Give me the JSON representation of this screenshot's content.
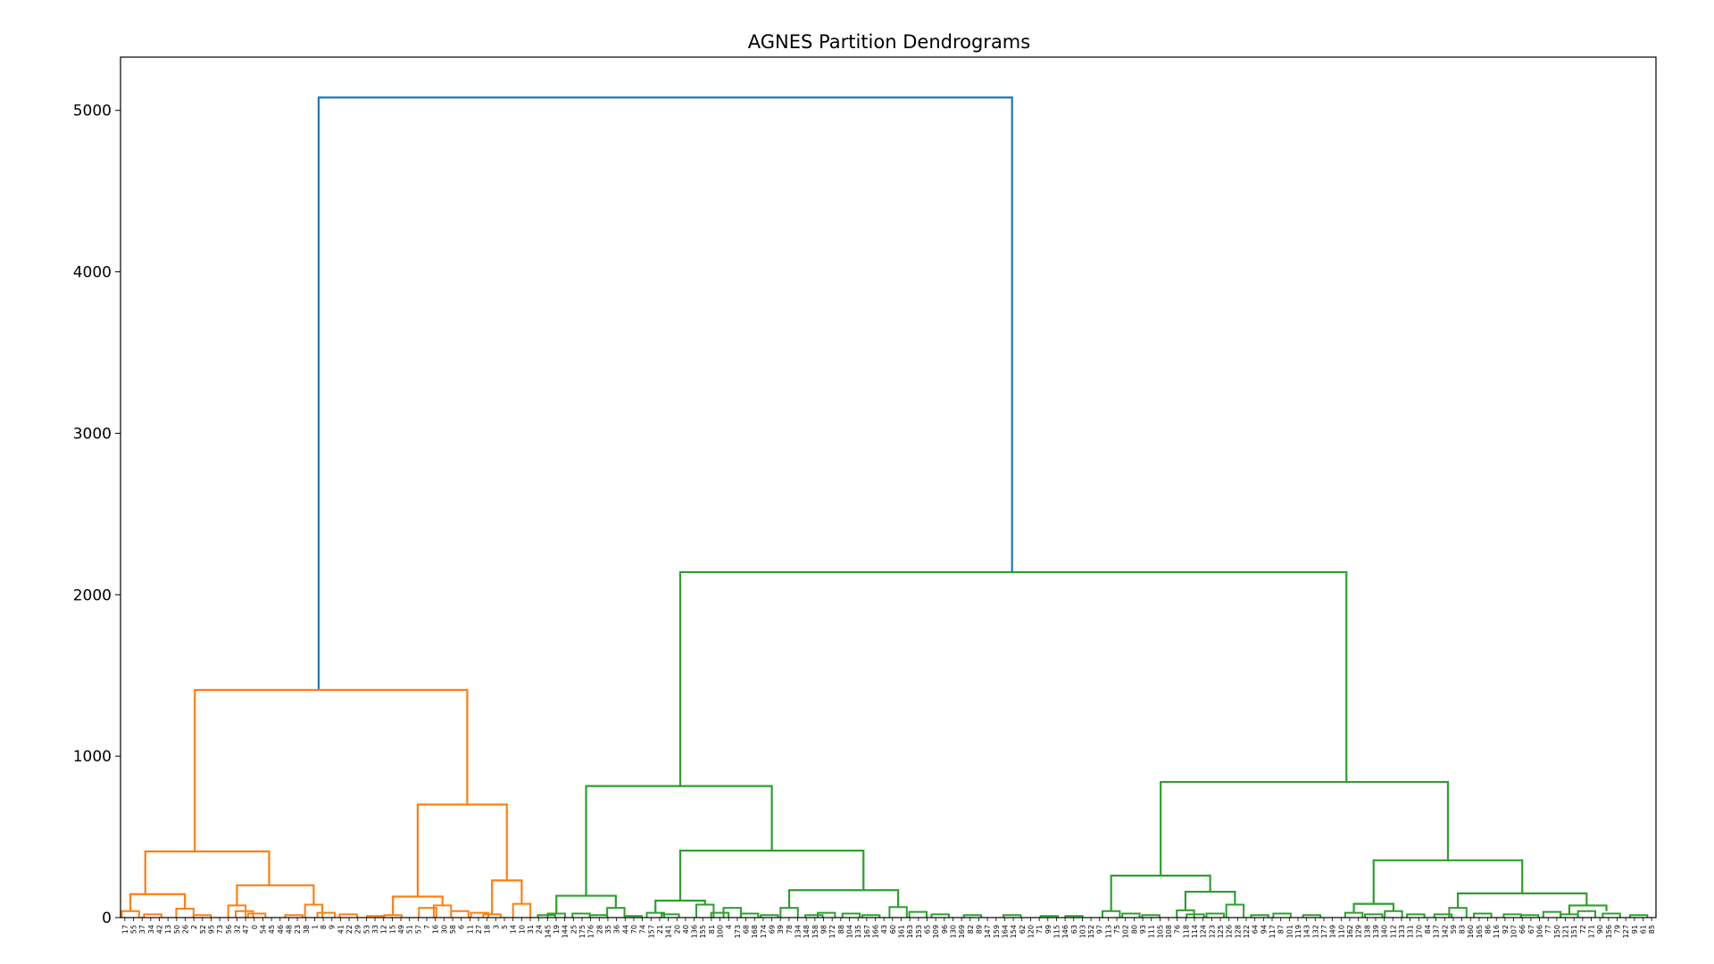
{
  "chart_data": {
    "type": "dendrogram",
    "title": "AGNES Partition Dendrograms",
    "xlabel": "",
    "ylabel": "",
    "ylim": [
      0,
      5330
    ],
    "yticks": [
      0,
      1000,
      2000,
      3000,
      4000,
      5000
    ],
    "grid": false,
    "colors": {
      "root": "#1f77b4",
      "cluster_1": "#ff7f0e",
      "cluster_2": "#2ca02c"
    },
    "leaves": [
      17,
      55,
      37,
      34,
      42,
      13,
      50,
      26,
      2,
      52,
      95,
      73,
      56,
      32,
      47,
      0,
      54,
      45,
      46,
      48,
      23,
      38,
      1,
      8,
      9,
      41,
      22,
      29,
      53,
      33,
      12,
      15,
      49,
      51,
      57,
      7,
      16,
      30,
      58,
      6,
      11,
      27,
      18,
      3,
      5,
      14,
      10,
      31,
      24,
      145,
      19,
      144,
      25,
      175,
      176,
      28,
      35,
      36,
      44,
      70,
      74,
      157,
      21,
      141,
      20,
      40,
      136,
      155,
      81,
      100,
      4,
      173,
      68,
      168,
      174,
      69,
      39,
      78,
      134,
      148,
      158,
      98,
      172,
      88,
      104,
      135,
      167,
      166,
      43,
      60,
      161,
      163,
      153,
      65,
      109,
      96,
      130,
      169,
      82,
      89,
      147,
      159,
      164,
      154,
      62,
      120,
      71,
      99,
      115,
      146,
      63,
      103,
      152,
      97,
      113,
      75,
      102,
      80,
      93,
      111,
      105,
      108,
      76,
      118,
      114,
      124,
      123,
      125,
      126,
      128,
      122,
      64,
      94,
      117,
      87,
      101,
      119,
      143,
      132,
      177,
      149,
      110,
      162,
      129,
      138,
      139,
      140,
      112,
      133,
      131,
      170,
      84,
      137,
      142,
      59,
      83,
      160,
      165,
      86,
      116,
      92,
      107,
      66,
      67,
      106,
      77,
      150,
      121,
      151,
      72,
      171,
      90,
      156,
      79,
      127,
      91,
      61,
      85
    ],
    "links": [
      {
        "x1": 8,
        "x2": 36,
        "h": 5080,
        "hl": 1410,
        "hr": 2140,
        "c": "root"
      },
      {
        "x1": 3,
        "x2": 14,
        "h": 1410,
        "hl": 410,
        "hr": 700,
        "c": "cluster_1"
      },
      {
        "x1": 1,
        "x2": 6,
        "h": 410,
        "hl": 145,
        "hr": 200,
        "c": "cluster_1"
      },
      {
        "x1": 0.4,
        "x2": 2.6,
        "h": 145,
        "hl": 40,
        "hr": 55,
        "c": "cluster_1"
      },
      {
        "x1": 4.7,
        "x2": 7.8,
        "h": 200,
        "hl": 75,
        "hr": 80,
        "c": "cluster_1"
      },
      {
        "x1": 12,
        "x2": 15.6,
        "h": 700,
        "hl": 130,
        "hr": 230,
        "c": "cluster_1"
      },
      {
        "x1": 11,
        "x2": 13,
        "h": 130,
        "hl": 15,
        "hr": 75,
        "c": "cluster_1"
      },
      {
        "x1": 15,
        "x2": 16.2,
        "h": 230,
        "hl": 20,
        "hr": 85,
        "c": "cluster_1"
      },
      {
        "x1": 22.6,
        "x2": 49.5,
        "h": 2140,
        "hl": 815,
        "hr": 840,
        "c": "cluster_2"
      },
      {
        "x1": 18.8,
        "x2": 26.3,
        "h": 815,
        "hl": 135,
        "hr": 415,
        "c": "cluster_2"
      },
      {
        "x1": 17.6,
        "x2": 20,
        "h": 135,
        "hl": 25,
        "hr": 60,
        "c": "cluster_2"
      },
      {
        "x1": 22.6,
        "x2": 30,
        "h": 415,
        "hl": 105,
        "hr": 170,
        "c": "cluster_2"
      },
      {
        "x1": 21.6,
        "x2": 23.6,
        "h": 105,
        "hl": 30,
        "hr": 80,
        "c": "cluster_2"
      },
      {
        "x1": 27,
        "x2": 31.4,
        "h": 170,
        "hl": 60,
        "hr": 65,
        "c": "cluster_2"
      },
      {
        "x1": 42,
        "x2": 53.6,
        "h": 840,
        "hl": 260,
        "hr": 355,
        "c": "cluster_2"
      },
      {
        "x1": 40,
        "x2": 44,
        "h": 260,
        "hl": 40,
        "hr": 160,
        "c": "cluster_2"
      },
      {
        "x1": 43,
        "x2": 45,
        "h": 160,
        "hl": 45,
        "hr": 80,
        "c": "cluster_2"
      },
      {
        "x1": 50.6,
        "x2": 56.6,
        "h": 355,
        "hl": 85,
        "hr": 150,
        "c": "cluster_2"
      },
      {
        "x1": 49.8,
        "x2": 51.4,
        "h": 85,
        "hl": 30,
        "hr": 40,
        "c": "cluster_2"
      },
      {
        "x1": 54,
        "x2": 59.2,
        "h": 150,
        "hl": 60,
        "hr": 75,
        "c": "cluster_2"
      },
      {
        "x1": 58.5,
        "x2": 60,
        "h": 75,
        "hl": 20,
        "hr": 40,
        "c": "cluster_2"
      }
    ],
    "low_merge_nodes": [
      0.4,
      40,
      1.3,
      20,
      2.6,
      55,
      3.3,
      15,
      4.7,
      75,
      5,
      40,
      5.5,
      25,
      7,
      15,
      7.8,
      80,
      8.3,
      30,
      9.2,
      20,
      10.3,
      10,
      11,
      15,
      12.4,
      60,
      13,
      75,
      13.7,
      40,
      14.5,
      30,
      15,
      20,
      16.2,
      85,
      17.2,
      15,
      17.6,
      25,
      18.6,
      25,
      19.3,
      15,
      20,
      60,
      20.7,
      10,
      21.6,
      30,
      22.2,
      20,
      23.6,
      80,
      24.2,
      30,
      24.7,
      60,
      25.4,
      25,
      26.2,
      15,
      27,
      60,
      28,
      15,
      28.5,
      30,
      29.5,
      25,
      30.3,
      15,
      31.4,
      65,
      32.2,
      35,
      33.1,
      20,
      34.4,
      15,
      36,
      15,
      37.5,
      10,
      38.5,
      10,
      40,
      40,
      40.8,
      25,
      41.6,
      15,
      43,
      45,
      43.4,
      20,
      44.2,
      25,
      45,
      80,
      46,
      15,
      46.9,
      25,
      48.1,
      15,
      49.8,
      30,
      50.6,
      20,
      51.4,
      40,
      52.3,
      20,
      53.4,
      20,
      54,
      60,
      55,
      25,
      56.2,
      20,
      56.9,
      15,
      57.8,
      35,
      58.5,
      20,
      59.2,
      40,
      60.2,
      25,
      61.3,
      15
    ]
  }
}
